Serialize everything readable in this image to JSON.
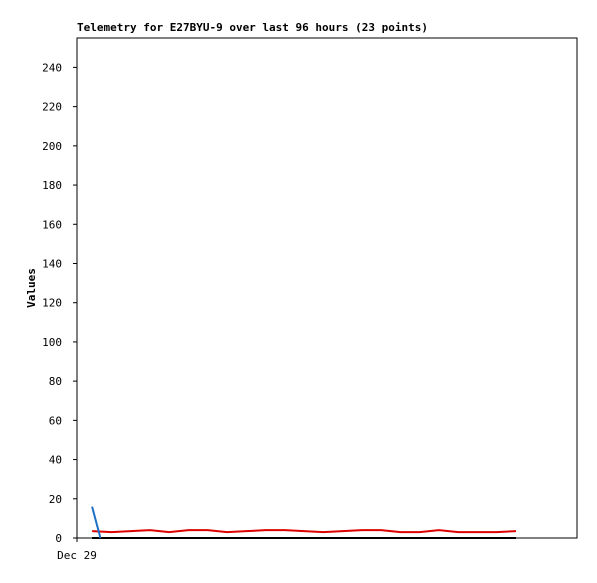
{
  "chart_data": {
    "type": "line",
    "title": "Telemetry for E27BYU-9 over last 96 hours (23 points)",
    "y_label": "Values",
    "xlim": [
      0,
      96
    ],
    "xticks": [
      {
        "value": 0,
        "label": "Dec 29"
      }
    ],
    "ylim": [
      0,
      255
    ],
    "yticks": [
      0,
      20,
      40,
      60,
      80,
      100,
      120,
      140,
      160,
      180,
      200,
      220,
      240
    ],
    "grid": false,
    "series": [
      {
        "color": "#dd0000",
        "x": [
          2.9,
          6.6,
          10.3,
          14.0,
          17.7,
          21.4,
          25.1,
          28.8,
          32.5,
          36.2,
          39.9,
          43.6,
          47.3,
          51.0,
          54.7,
          58.4,
          62.1,
          65.8,
          69.5,
          73.2,
          76.9,
          80.6,
          84.3
        ],
        "values": [
          3.5,
          3,
          3.5,
          4,
          3,
          4,
          4,
          3,
          3.5,
          4,
          4,
          3.5,
          3,
          3.5,
          4,
          4,
          3,
          3,
          4,
          3,
          3,
          3,
          3.5
        ]
      },
      {
        "color": "#000000",
        "x": [
          2.9,
          6.6,
          10.3,
          14.0,
          17.7,
          21.4,
          25.1,
          28.8,
          32.5,
          36.2,
          39.9,
          43.6,
          47.3,
          51.0,
          54.7,
          58.4,
          62.1,
          65.8,
          69.5,
          73.2,
          76.9,
          80.6,
          84.3
        ],
        "values": [
          0,
          0,
          0,
          0,
          0,
          0,
          0,
          0,
          0,
          0,
          0,
          0,
          0,
          0,
          0,
          0,
          0,
          0,
          0,
          0,
          0,
          0,
          0
        ]
      },
      {
        "color": "#1f6fc5",
        "x": [
          2.9,
          4.5
        ],
        "values": [
          16,
          0
        ]
      }
    ]
  }
}
